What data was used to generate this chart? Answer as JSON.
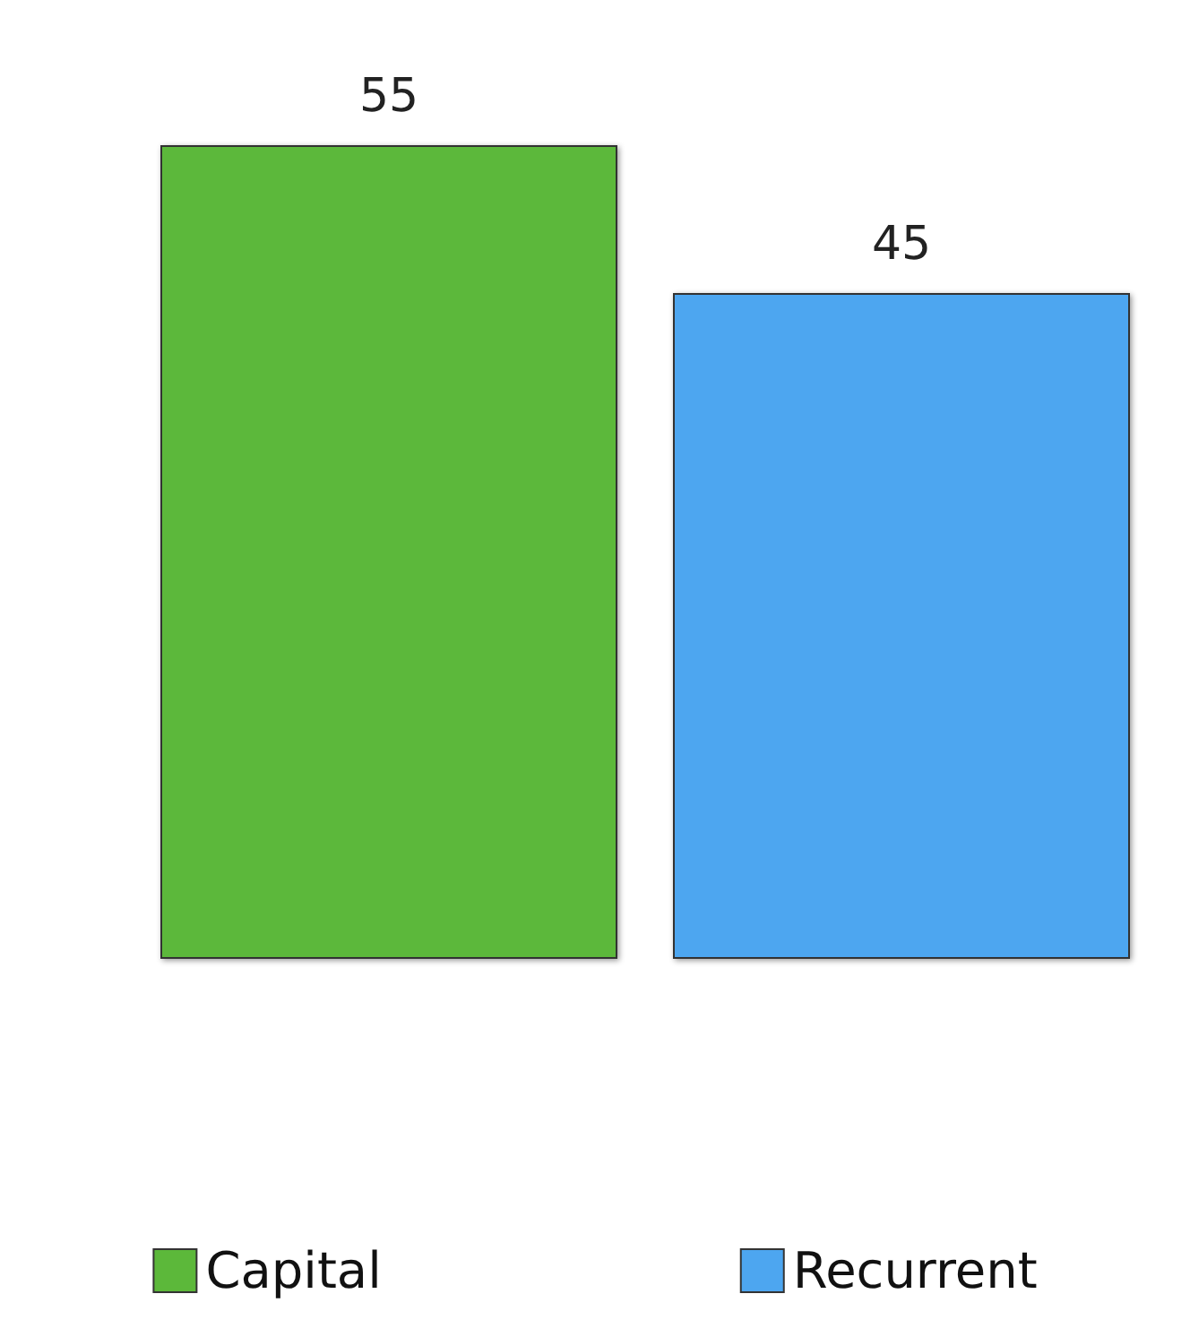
{
  "chart_data": {
    "type": "bar",
    "categories": [
      null,
      null
    ],
    "series": [
      {
        "name": "Capital",
        "color": "#5cb83a",
        "values": [
          55,
          null
        ]
      },
      {
        "name": "Recurrent",
        "color": "#4da6f0",
        "values": [
          null,
          45
        ]
      }
    ],
    "stacked": true,
    "data_labels": true,
    "legend": "bottom"
  }
}
